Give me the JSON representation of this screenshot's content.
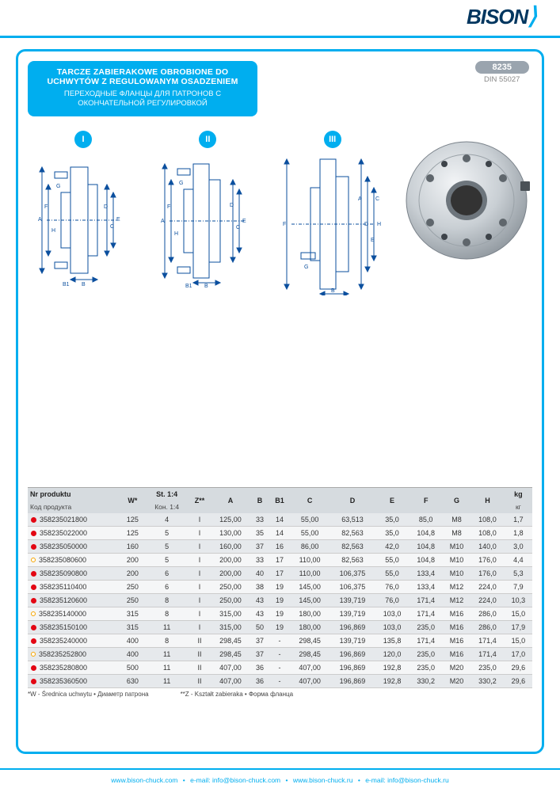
{
  "brand": "BISON",
  "product_code": "8235",
  "din": "DIN 55027",
  "title_pl": "TARCZE ZABIERAKOWE OBROBIONE DO UCHWYTÓW Z REGULOWANYM OSADZENIEM",
  "title_ru": "ПЕРЕХОДНЫЕ ФЛАНЦЫ ДЛЯ ПАТРОНОВ С ОКОНЧАТЕЛЬНОЙ РЕГУЛИРОВКОЙ",
  "romans": [
    "I",
    "II",
    "III"
  ],
  "dim_letters": [
    "A",
    "B",
    "C",
    "D",
    "E",
    "F",
    "G",
    "H",
    "B1"
  ],
  "table": {
    "headers": {
      "prod_pl": "Nr produktu",
      "prod_ru": "Код продукта",
      "w": "W*",
      "st_pl": "St. 1:4",
      "st_ru": "Кон. 1:4",
      "z": "Z**",
      "a": "A",
      "b": "B",
      "b1": "B1",
      "c": "C",
      "d": "D",
      "e": "E",
      "f": "F",
      "g": "G",
      "h": "H",
      "kg_pl": "kg",
      "kg_ru": "кг"
    },
    "rows": [
      {
        "dot": "red",
        "p": "358235021800",
        "w": "125",
        "st": "4",
        "z": "I",
        "a": "125,00",
        "b": "33",
        "b1": "14",
        "c": "55,00",
        "d": "63,513",
        "e": "35,0",
        "f": "85,0",
        "g": "M8",
        "h": "108,0",
        "kg": "1,7"
      },
      {
        "dot": "red",
        "p": "358235022000",
        "w": "125",
        "st": "5",
        "z": "I",
        "a": "130,00",
        "b": "35",
        "b1": "14",
        "c": "55,00",
        "d": "82,563",
        "e": "35,0",
        "f": "104,8",
        "g": "M8",
        "h": "108,0",
        "kg": "1,8"
      },
      {
        "dot": "red",
        "p": "358235050000",
        "w": "160",
        "st": "5",
        "z": "I",
        "a": "160,00",
        "b": "37",
        "b1": "16",
        "c": "86,00",
        "d": "82,563",
        "e": "42,0",
        "f": "104,8",
        "g": "M10",
        "h": "140,0",
        "kg": "3,0"
      },
      {
        "dot": "open",
        "p": "358235080600",
        "w": "200",
        "st": "5",
        "z": "I",
        "a": "200,00",
        "b": "33",
        "b1": "17",
        "c": "110,00",
        "d": "82,563",
        "e": "55,0",
        "f": "104,8",
        "g": "M10",
        "h": "176,0",
        "kg": "4,4"
      },
      {
        "dot": "red",
        "p": "358235090800",
        "w": "200",
        "st": "6",
        "z": "I",
        "a": "200,00",
        "b": "40",
        "b1": "17",
        "c": "110,00",
        "d": "106,375",
        "e": "55,0",
        "f": "133,4",
        "g": "M10",
        "h": "176,0",
        "kg": "5,3"
      },
      {
        "dot": "red",
        "p": "358235110400",
        "w": "250",
        "st": "6",
        "z": "I",
        "a": "250,00",
        "b": "38",
        "b1": "19",
        "c": "145,00",
        "d": "106,375",
        "e": "76,0",
        "f": "133,4",
        "g": "M12",
        "h": "224,0",
        "kg": "7,9"
      },
      {
        "dot": "red",
        "p": "358235120600",
        "w": "250",
        "st": "8",
        "z": "I",
        "a": "250,00",
        "b": "43",
        "b1": "19",
        "c": "145,00",
        "d": "139,719",
        "e": "76,0",
        "f": "171,4",
        "g": "M12",
        "h": "224,0",
        "kg": "10,3"
      },
      {
        "dot": "open",
        "p": "358235140000",
        "w": "315",
        "st": "8",
        "z": "I",
        "a": "315,00",
        "b": "43",
        "b1": "19",
        "c": "180,00",
        "d": "139,719",
        "e": "103,0",
        "f": "171,4",
        "g": "M16",
        "h": "286,0",
        "kg": "15,0"
      },
      {
        "dot": "red",
        "p": "358235150100",
        "w": "315",
        "st": "11",
        "z": "I",
        "a": "315,00",
        "b": "50",
        "b1": "19",
        "c": "180,00",
        "d": "196,869",
        "e": "103,0",
        "f": "235,0",
        "g": "M16",
        "h": "286,0",
        "kg": "17,9"
      },
      {
        "dot": "red",
        "p": "358235240000",
        "w": "400",
        "st": "8",
        "z": "II",
        "a": "298,45",
        "b": "37",
        "b1": "-",
        "c": "298,45",
        "d": "139,719",
        "e": "135,8",
        "f": "171,4",
        "g": "M16",
        "h": "171,4",
        "kg": "15,0"
      },
      {
        "dot": "open",
        "p": "358235252800",
        "w": "400",
        "st": "11",
        "z": "II",
        "a": "298,45",
        "b": "37",
        "b1": "-",
        "c": "298,45",
        "d": "196,869",
        "e": "120,0",
        "f": "235,0",
        "g": "M16",
        "h": "171,4",
        "kg": "17,0"
      },
      {
        "dot": "red",
        "p": "358235280800",
        "w": "500",
        "st": "11",
        "z": "II",
        "a": "407,00",
        "b": "36",
        "b1": "-",
        "c": "407,00",
        "d": "196,869",
        "e": "192,8",
        "f": "235,0",
        "g": "M20",
        "h": "235,0",
        "kg": "29,6"
      },
      {
        "dot": "red",
        "p": "358235360500",
        "w": "630",
        "st": "11",
        "z": "II",
        "a": "407,00",
        "b": "36",
        "b1": "-",
        "c": "407,00",
        "d": "196,869",
        "e": "192,8",
        "f": "330,2",
        "g": "M20",
        "h": "330,2",
        "kg": "29,6"
      }
    ]
  },
  "foot_w": "*W - Średnica uchwytu • Диаметр патрона",
  "foot_z": "**Z - Kształt zabieraka • Форма фланца",
  "footer": {
    "url1": "www.bison-chuck.com",
    "em1_label": "e-mail:",
    "em1": "info@bison-chuck.com",
    "url2": "www.bison-chuck.ru",
    "em2_label": "e-mail:",
    "em2": "info@bison-chuck.ru"
  }
}
